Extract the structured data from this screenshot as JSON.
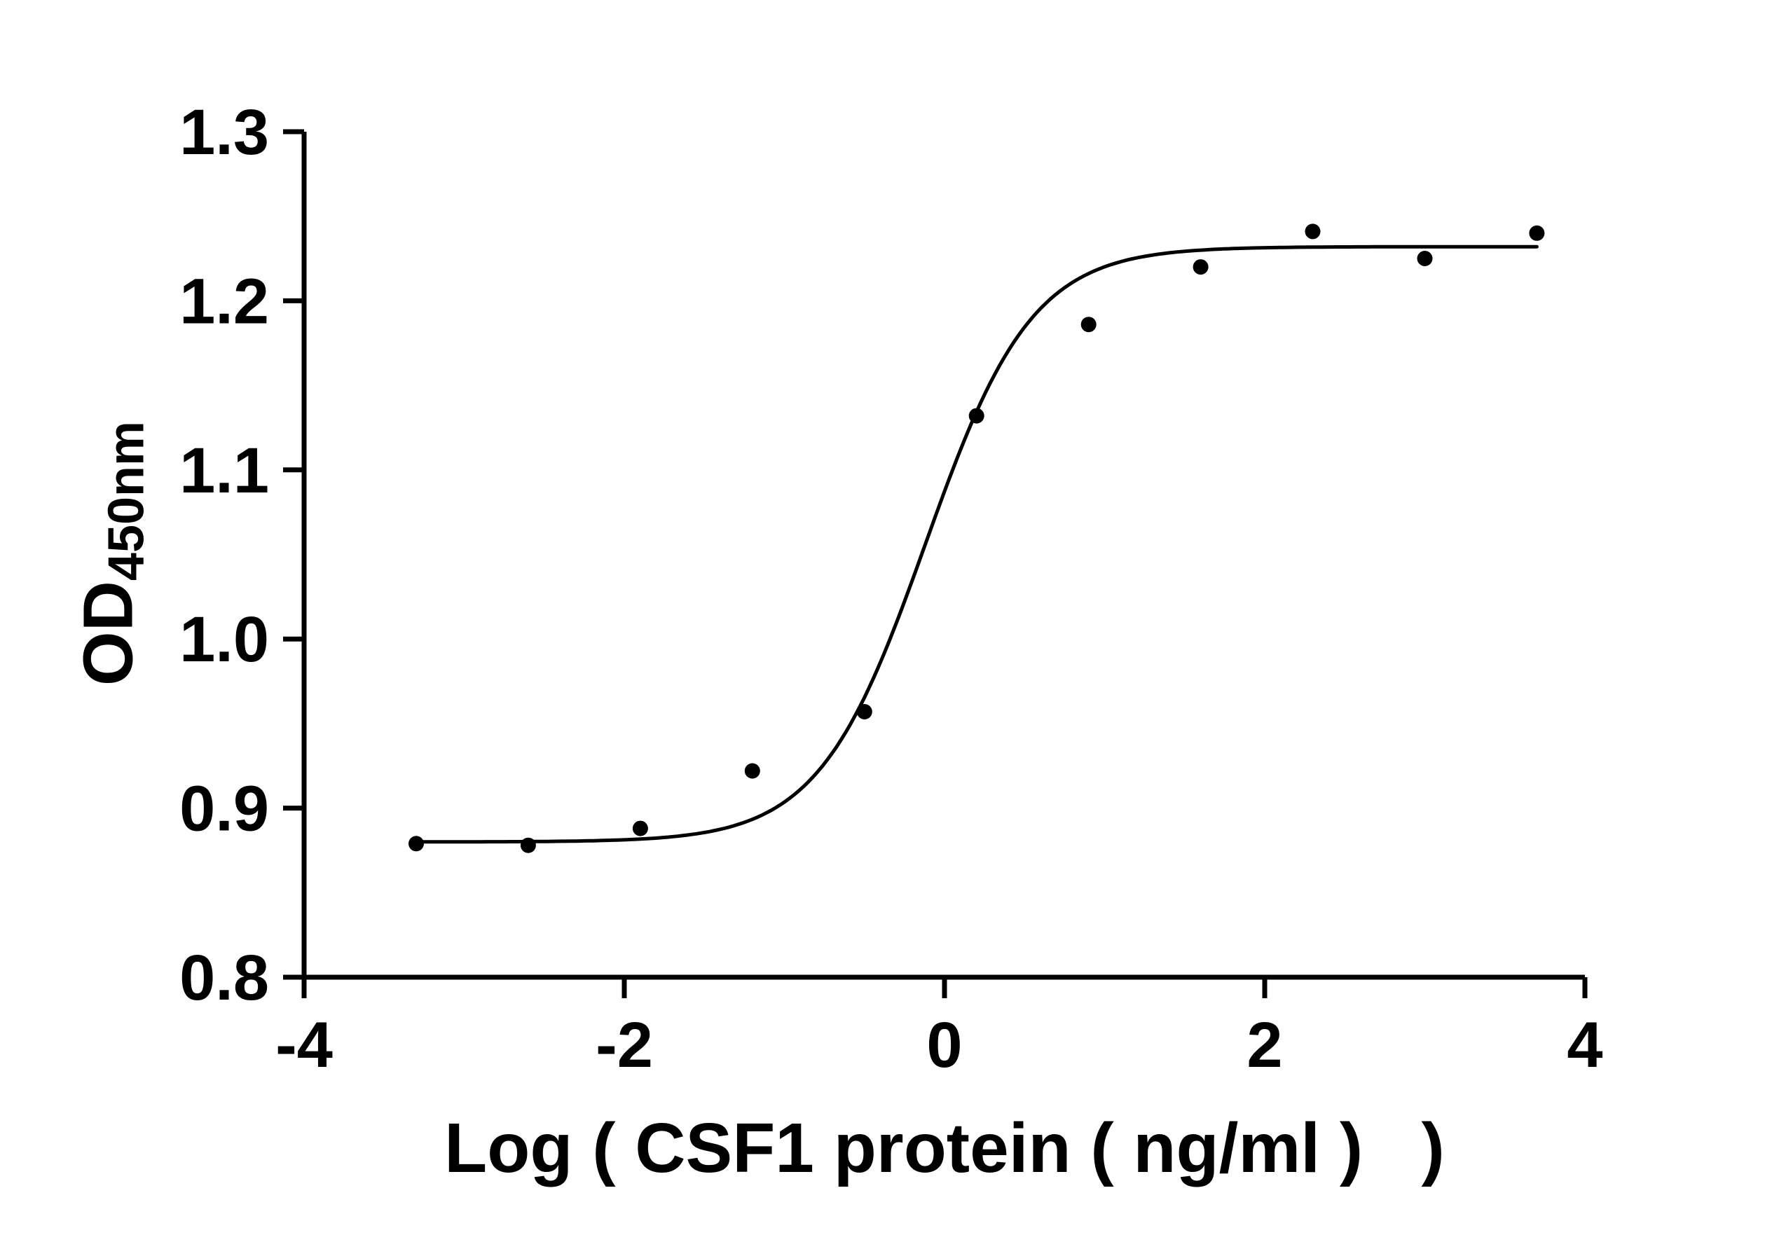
{
  "chart_data": {
    "type": "scatter",
    "title": "",
    "xlabel": "Log ( CSF1 protein ( ng/ml )   )",
    "ylabel": "OD",
    "ylabel_subscript": "450nm",
    "xlim": [
      -4,
      4
    ],
    "ylim": [
      0.8,
      1.3
    ],
    "grid": false,
    "legend": "none",
    "xticks": [
      {
        "v": -4,
        "label": "-4"
      },
      {
        "v": -2,
        "label": "-2"
      },
      {
        "v": 0,
        "label": "0"
      },
      {
        "v": 2,
        "label": "2"
      },
      {
        "v": 4,
        "label": "4"
      }
    ],
    "yticks": [
      {
        "v": 0.8,
        "label": "0.8"
      },
      {
        "v": 0.9,
        "label": "0.9"
      },
      {
        "v": 1.0,
        "label": "1.0"
      },
      {
        "v": 1.1,
        "label": "1.1"
      },
      {
        "v": 1.2,
        "label": "1.2"
      },
      {
        "v": 1.3,
        "label": "1.3"
      }
    ],
    "points": [
      {
        "x": -3.3,
        "y": 0.879
      },
      {
        "x": -2.6,
        "y": 0.878
      },
      {
        "x": -1.9,
        "y": 0.888
      },
      {
        "x": -1.2,
        "y": 0.922
      },
      {
        "x": -0.5,
        "y": 0.957
      },
      {
        "x": 0.2,
        "y": 1.132
      },
      {
        "x": 0.9,
        "y": 1.186
      },
      {
        "x": 1.6,
        "y": 1.22
      },
      {
        "x": 2.3,
        "y": 1.241
      },
      {
        "x": 3.0,
        "y": 1.225
      },
      {
        "x": 3.7,
        "y": 1.24
      }
    ],
    "fit_curve": {
      "model": "four_parameter_logistic",
      "bottom": 0.88,
      "top": 1.232,
      "log_ec50": -0.12,
      "hill_slope": 1.3,
      "x_start": -3.3,
      "x_end": 3.7
    },
    "colors": {
      "axis": "#000000",
      "points": "#000000",
      "curve": "#000000",
      "background": "#ffffff"
    }
  }
}
